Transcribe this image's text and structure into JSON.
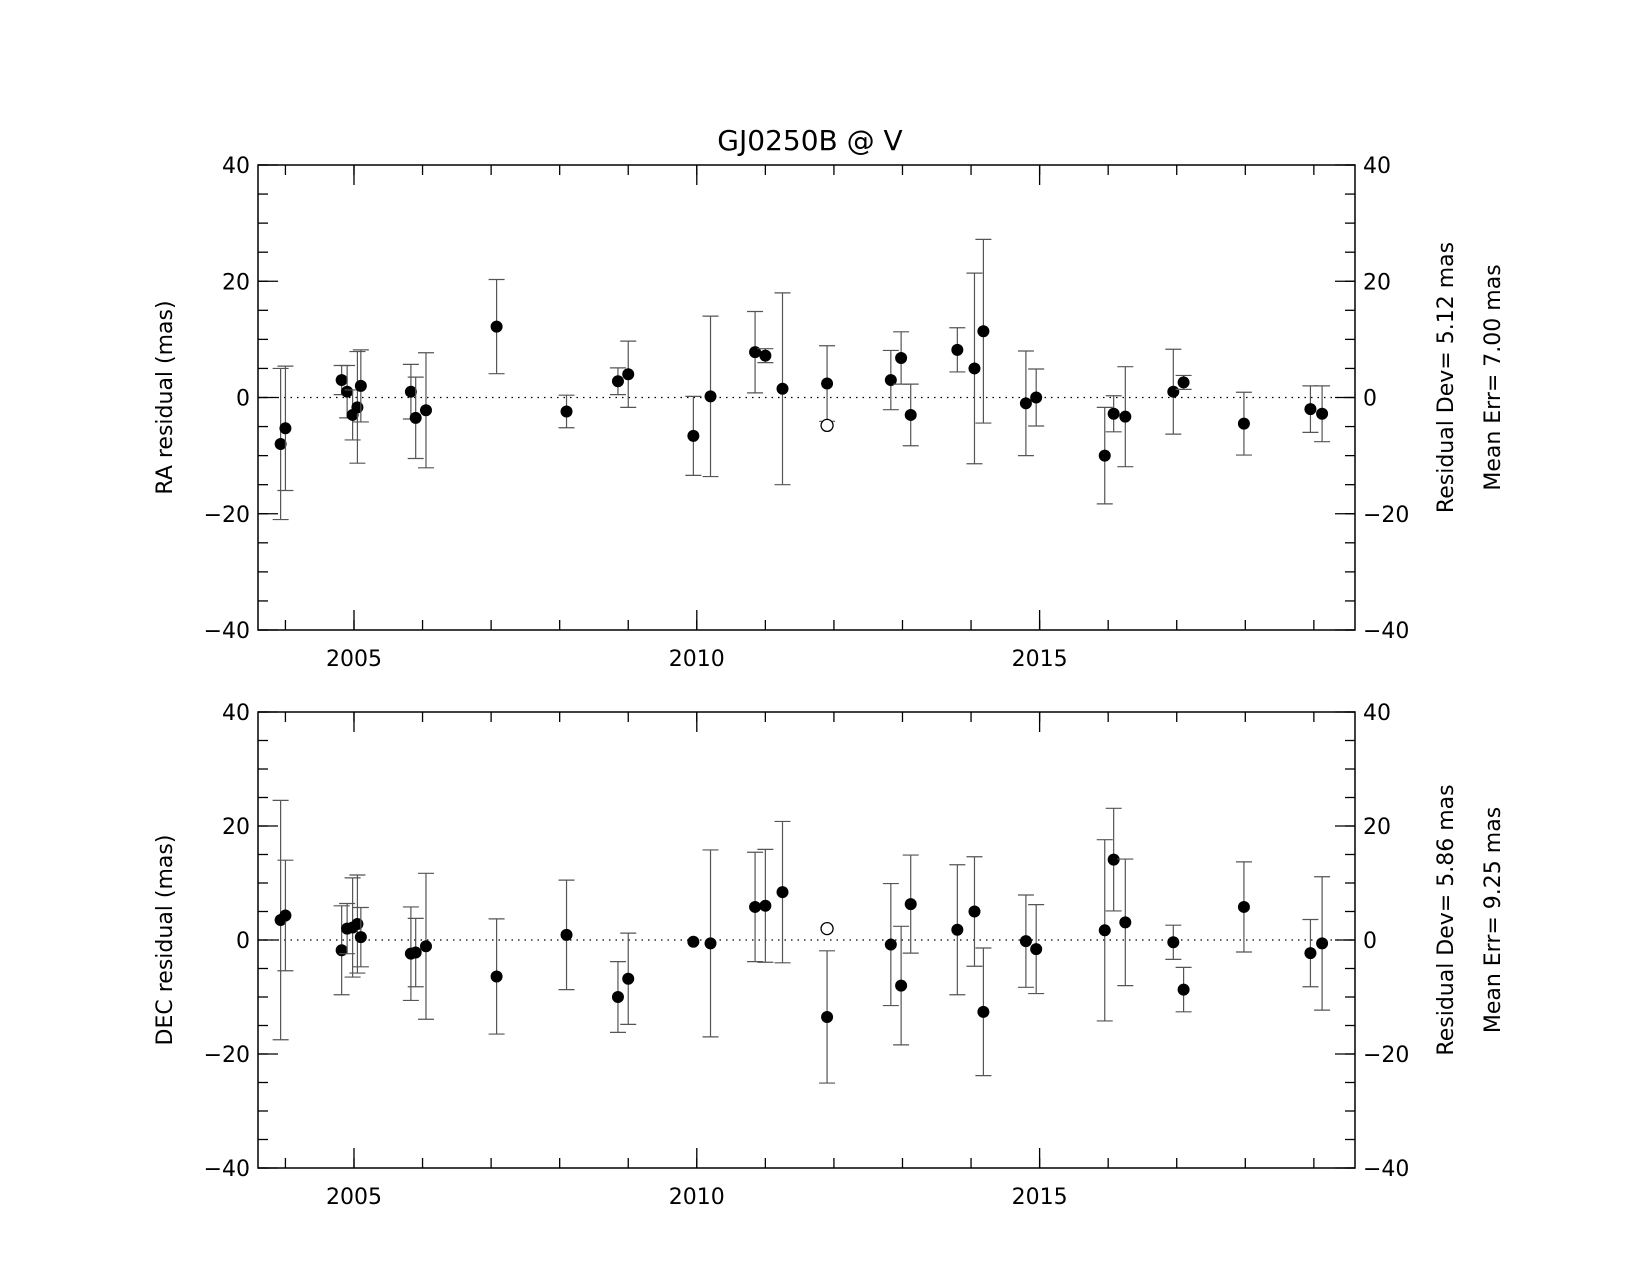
{
  "chart_data": [
    {
      "type": "scatter",
      "title": "GJ0250B @ V",
      "xlabel": "",
      "ylabel": "RA residual (mas)",
      "xlim": [
        2003.6,
        2019.6
      ],
      "ylim": [
        -40,
        40
      ],
      "xticks": [
        2005,
        2010,
        2015
      ],
      "yticks": [
        -40,
        -20,
        0,
        20,
        40
      ],
      "grid": false,
      "zero_line": true,
      "stats": [
        "Residual Dev=   5.12  mas",
        "Mean Err=  7.00  mas"
      ],
      "points": [
        {
          "x": 2003.93,
          "y": -8.0,
          "err": 13.0,
          "open": false
        },
        {
          "x": 2004.0,
          "y": -5.3,
          "err": 10.7,
          "open": false
        },
        {
          "x": 2004.82,
          "y": 3.0,
          "err": 2.5,
          "open": false
        },
        {
          "x": 2004.9,
          "y": 1.0,
          "err": 4.5,
          "open": false
        },
        {
          "x": 2004.98,
          "y": -3.0,
          "err": 4.3,
          "open": false
        },
        {
          "x": 2005.05,
          "y": -1.7,
          "err": 9.6,
          "open": false
        },
        {
          "x": 2005.1,
          "y": 2.0,
          "err": 6.2,
          "open": false
        },
        {
          "x": 2005.83,
          "y": 1.0,
          "err": 4.7,
          "open": false
        },
        {
          "x": 2005.9,
          "y": -3.5,
          "err": 7.0,
          "open": false
        },
        {
          "x": 2006.05,
          "y": -2.2,
          "err": 9.9,
          "open": false
        },
        {
          "x": 2007.08,
          "y": 12.2,
          "err": 8.1,
          "open": false
        },
        {
          "x": 2008.1,
          "y": -2.4,
          "err": 2.8,
          "open": false
        },
        {
          "x": 2008.85,
          "y": 2.8,
          "err": 2.3,
          "open": false
        },
        {
          "x": 2009.0,
          "y": 4.0,
          "err": 5.7,
          "open": false
        },
        {
          "x": 2009.95,
          "y": -6.6,
          "err": 6.8,
          "open": false
        },
        {
          "x": 2010.2,
          "y": 0.2,
          "err": 13.8,
          "open": false
        },
        {
          "x": 2010.85,
          "y": 7.8,
          "err": 7.0,
          "open": false
        },
        {
          "x": 2011.0,
          "y": 7.2,
          "err": 1.2,
          "open": false
        },
        {
          "x": 2011.25,
          "y": 1.5,
          "err": 16.5,
          "open": false
        },
        {
          "x": 2011.9,
          "y": 2.4,
          "err": 6.5,
          "open": false
        },
        {
          "x": 2011.9,
          "y": -4.8,
          "err": 0,
          "open": true
        },
        {
          "x": 2012.83,
          "y": 3.0,
          "err": 5.1,
          "open": false
        },
        {
          "x": 2012.98,
          "y": 6.8,
          "err": 4.5,
          "open": false
        },
        {
          "x": 2013.12,
          "y": -3.0,
          "err": 5.3,
          "open": false
        },
        {
          "x": 2013.8,
          "y": 8.2,
          "err": 3.8,
          "open": false
        },
        {
          "x": 2014.05,
          "y": 5.0,
          "err": 16.4,
          "open": false
        },
        {
          "x": 2014.18,
          "y": 11.4,
          "err": 15.8,
          "open": false
        },
        {
          "x": 2014.8,
          "y": -1.0,
          "err": 9.0,
          "open": false
        },
        {
          "x": 2014.95,
          "y": 0.0,
          "err": 4.9,
          "open": false
        },
        {
          "x": 2015.95,
          "y": -10.0,
          "err": 8.3,
          "open": false
        },
        {
          "x": 2016.08,
          "y": -2.8,
          "err": 3.1,
          "open": false
        },
        {
          "x": 2016.25,
          "y": -3.3,
          "err": 8.6,
          "open": false
        },
        {
          "x": 2016.95,
          "y": 1.0,
          "err": 7.3,
          "open": false
        },
        {
          "x": 2017.1,
          "y": 2.6,
          "err": 1.2,
          "open": false
        },
        {
          "x": 2017.98,
          "y": -4.5,
          "err": 5.4,
          "open": false
        },
        {
          "x": 2018.95,
          "y": -2.0,
          "err": 4.0,
          "open": false
        },
        {
          "x": 2019.12,
          "y": -2.8,
          "err": 4.8,
          "open": false
        }
      ]
    },
    {
      "type": "scatter",
      "title": "",
      "xlabel": "",
      "ylabel": "DEC residual (mas)",
      "xlim": [
        2003.6,
        2019.6
      ],
      "ylim": [
        -40,
        40
      ],
      "xticks": [
        2005,
        2010,
        2015
      ],
      "yticks": [
        -40,
        -20,
        0,
        20,
        40
      ],
      "grid": false,
      "zero_line": true,
      "stats": [
        "Residual Dev=   5.86  mas",
        "Mean Err=  9.25  mas"
      ],
      "points": [
        {
          "x": 2003.93,
          "y": 3.5,
          "err": 21.0,
          "open": false
        },
        {
          "x": 2004.0,
          "y": 4.3,
          "err": 9.7,
          "open": false
        },
        {
          "x": 2004.82,
          "y": -1.8,
          "err": 7.8,
          "open": false
        },
        {
          "x": 2004.9,
          "y": 2.0,
          "err": 4.4,
          "open": false
        },
        {
          "x": 2004.98,
          "y": 2.2,
          "err": 8.7,
          "open": false
        },
        {
          "x": 2005.05,
          "y": 2.8,
          "err": 8.6,
          "open": false
        },
        {
          "x": 2005.1,
          "y": 0.5,
          "err": 5.2,
          "open": false
        },
        {
          "x": 2005.83,
          "y": -2.4,
          "err": 8.2,
          "open": false
        },
        {
          "x": 2005.9,
          "y": -2.2,
          "err": 6.0,
          "open": false
        },
        {
          "x": 2006.05,
          "y": -1.1,
          "err": 12.8,
          "open": false
        },
        {
          "x": 2007.08,
          "y": -6.4,
          "err": 10.1,
          "open": false
        },
        {
          "x": 2008.1,
          "y": 0.9,
          "err": 9.6,
          "open": false
        },
        {
          "x": 2008.85,
          "y": -10.0,
          "err": 6.2,
          "open": false
        },
        {
          "x": 2009.0,
          "y": -6.8,
          "err": 8.0,
          "open": false
        },
        {
          "x": 2009.95,
          "y": -0.3,
          "err": 0,
          "open": false
        },
        {
          "x": 2010.2,
          "y": -0.6,
          "err": 16.4,
          "open": false
        },
        {
          "x": 2010.85,
          "y": 5.8,
          "err": 9.6,
          "open": false
        },
        {
          "x": 2011.0,
          "y": 6.0,
          "err": 9.9,
          "open": false
        },
        {
          "x": 2011.25,
          "y": 8.4,
          "err": 12.4,
          "open": false
        },
        {
          "x": 2011.9,
          "y": -13.5,
          "err": 11.6,
          "open": false
        },
        {
          "x": 2011.9,
          "y": 2.0,
          "err": 0,
          "open": true
        },
        {
          "x": 2012.83,
          "y": -0.8,
          "err": 10.7,
          "open": false
        },
        {
          "x": 2012.98,
          "y": -8.0,
          "err": 10.4,
          "open": false
        },
        {
          "x": 2013.12,
          "y": 6.3,
          "err": 8.6,
          "open": false
        },
        {
          "x": 2013.8,
          "y": 1.8,
          "err": 11.4,
          "open": false
        },
        {
          "x": 2014.05,
          "y": 5.0,
          "err": 9.6,
          "open": false
        },
        {
          "x": 2014.18,
          "y": -12.6,
          "err": 11.2,
          "open": false
        },
        {
          "x": 2014.8,
          "y": -0.2,
          "err": 8.1,
          "open": false
        },
        {
          "x": 2014.95,
          "y": -1.6,
          "err": 7.8,
          "open": false
        },
        {
          "x": 2015.95,
          "y": 1.7,
          "err": 15.9,
          "open": false
        },
        {
          "x": 2016.08,
          "y": 14.1,
          "err": 9.0,
          "open": false
        },
        {
          "x": 2016.25,
          "y": 3.1,
          "err": 11.1,
          "open": false
        },
        {
          "x": 2016.95,
          "y": -0.4,
          "err": 3.0,
          "open": false
        },
        {
          "x": 2017.1,
          "y": -8.7,
          "err": 3.9,
          "open": false
        },
        {
          "x": 2017.98,
          "y": 5.8,
          "err": 7.9,
          "open": false
        },
        {
          "x": 2018.95,
          "y": -2.3,
          "err": 5.9,
          "open": false
        },
        {
          "x": 2019.12,
          "y": -0.6,
          "err": 11.7,
          "open": false
        }
      ]
    }
  ]
}
